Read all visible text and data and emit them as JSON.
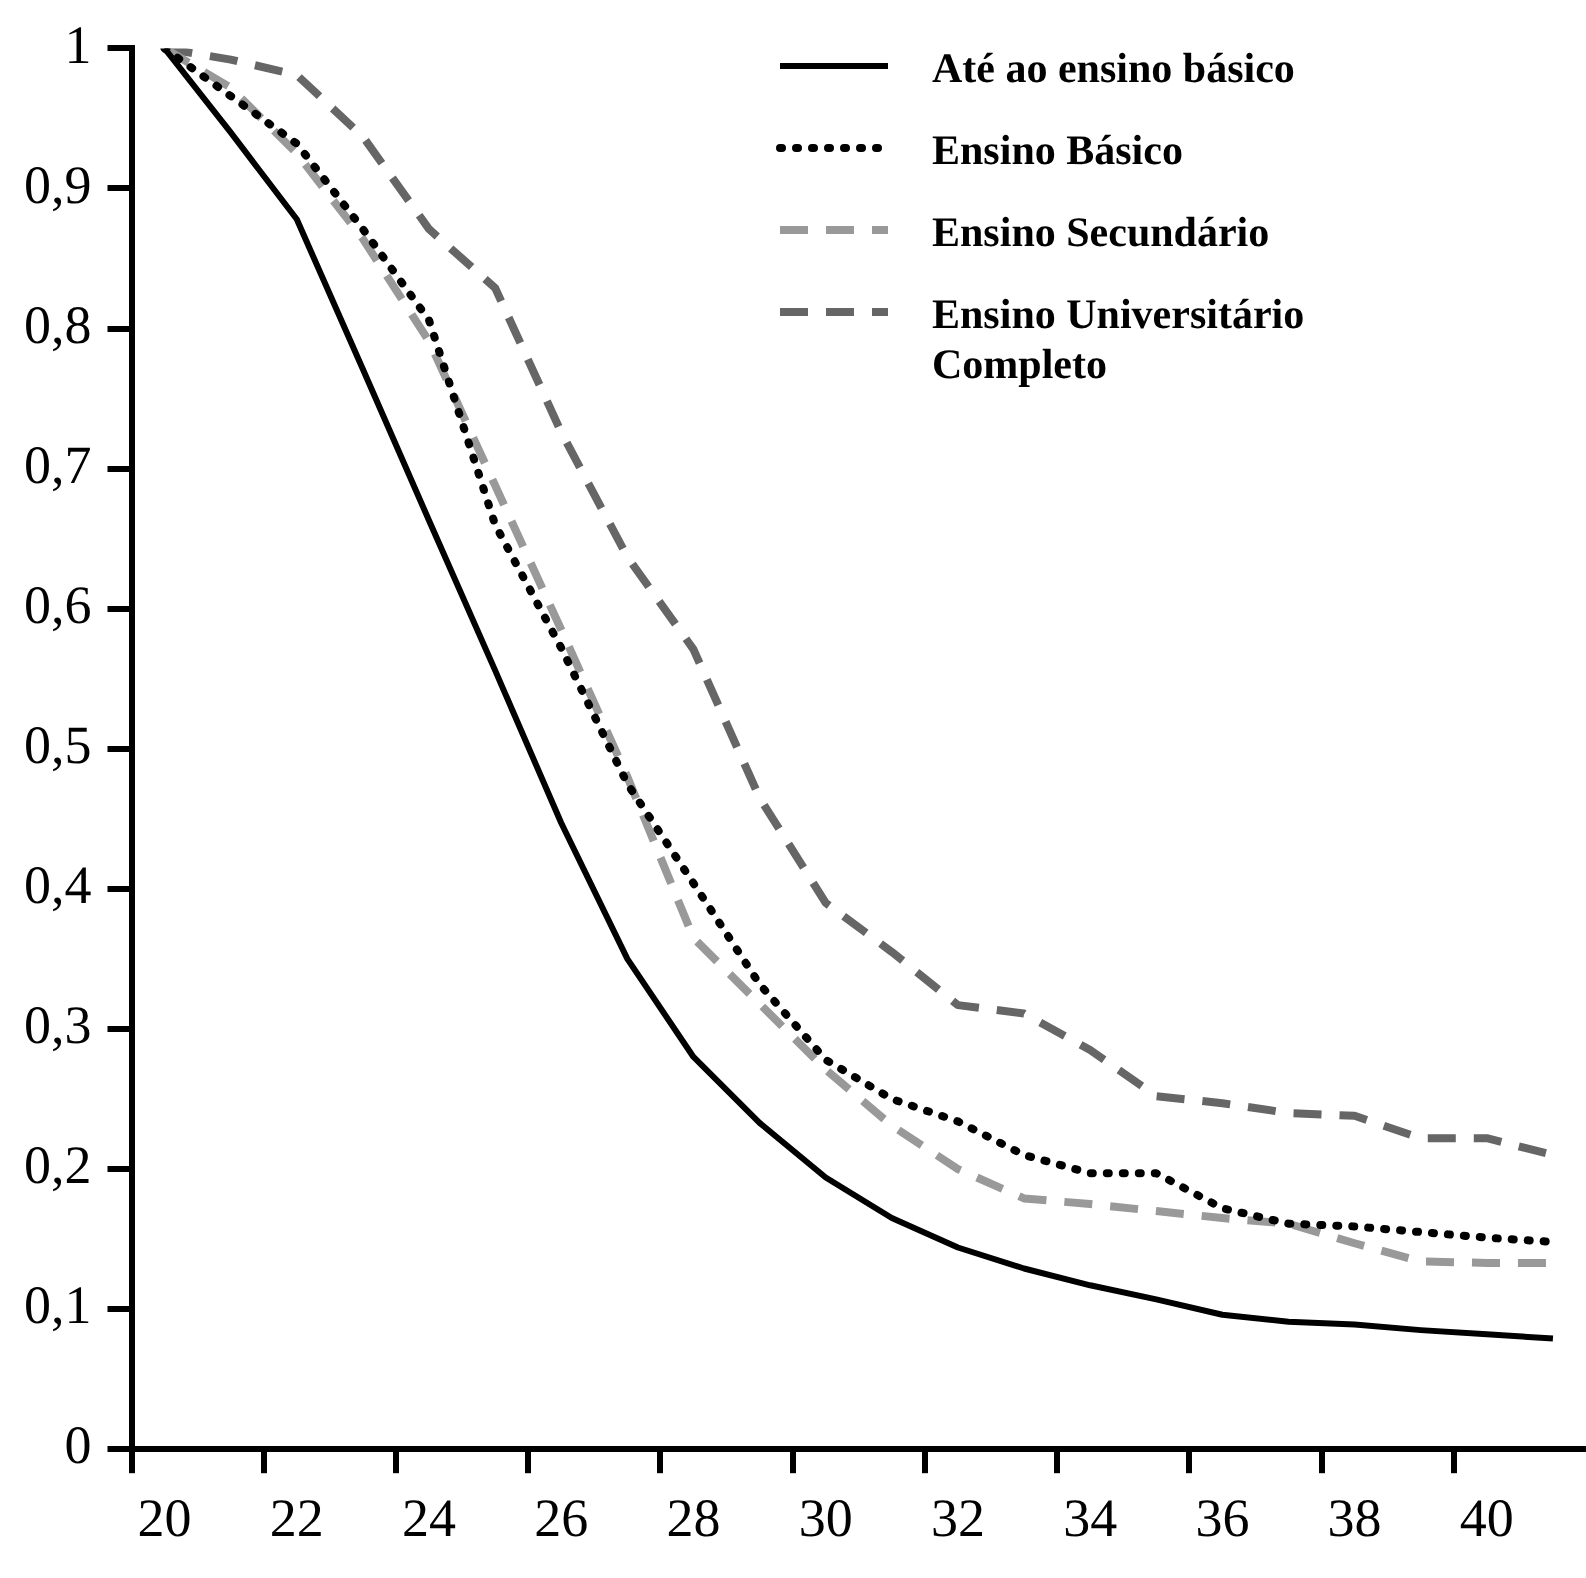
{
  "chart_data": {
    "type": "line",
    "categories": [
      "20",
      null,
      "22",
      null,
      "24",
      null,
      "26",
      null,
      "28",
      null,
      "30",
      null,
      "32",
      null,
      "34",
      null,
      "36",
      null,
      "38",
      null,
      "40",
      null
    ],
    "ylim": [
      0,
      1
    ],
    "yticks": [
      0,
      {
        "value": 0.1,
        "label": "0,1"
      },
      {
        "value": 0.2,
        "label": "0,2"
      },
      {
        "value": 0.3,
        "label": "0,3"
      },
      {
        "value": 0.4,
        "label": "0,4"
      },
      {
        "value": 0.5,
        "label": "0,5"
      },
      {
        "value": 0.6,
        "label": "0,6"
      },
      {
        "value": 0.7,
        "label": "0,7"
      },
      {
        "value": 0.8,
        "label": "0,8"
      },
      {
        "value": 0.9,
        "label": "0,9"
      },
      1
    ],
    "legend": "top right",
    "marker": "none",
    "series": [
      {
        "name": "Até ao ensino básico",
        "color": "#000000",
        "line_style": "solid",
        "values": [
          1.0,
          0.94,
          0.878,
          0.771,
          0.663,
          0.556,
          0.447,
          0.35,
          0.28,
          0.233,
          0.194,
          0.165,
          0.144,
          0.129,
          0.117,
          0.107,
          0.096,
          0.091,
          0.089,
          0.085,
          0.082,
          0.079
        ]
      },
      {
        "name": "Ensino Básico",
        "color": "#000000",
        "line_style": "dotted",
        "values": [
          1.0,
          0.966,
          0.932,
          0.871,
          0.806,
          0.66,
          0.572,
          0.475,
          0.404,
          0.332,
          0.278,
          0.25,
          0.234,
          0.21,
          0.197,
          0.197,
          0.172,
          0.161,
          0.159,
          0.155,
          0.151,
          0.148
        ]
      },
      {
        "name": "Ensino Secundário",
        "color": "#999999",
        "line_style": "dashed",
        "values": [
          1.0,
          0.972,
          0.925,
          0.864,
          0.791,
          0.688,
          0.585,
          0.48,
          0.365,
          0.318,
          0.271,
          0.231,
          0.2,
          0.179,
          0.175,
          0.17,
          0.165,
          0.161,
          0.147,
          0.134,
          0.133,
          0.133
        ]
      },
      {
        "name": "Ensino Universitário Completo",
        "color": "#666666",
        "line_style": "dashed",
        "values": [
          1.0,
          0.992,
          0.981,
          0.937,
          0.871,
          0.829,
          0.726,
          0.637,
          0.571,
          0.465,
          0.39,
          0.355,
          0.317,
          0.311,
          0.285,
          0.252,
          0.247,
          0.24,
          0.238,
          0.222,
          0.222,
          0.21
        ]
      }
    ]
  }
}
